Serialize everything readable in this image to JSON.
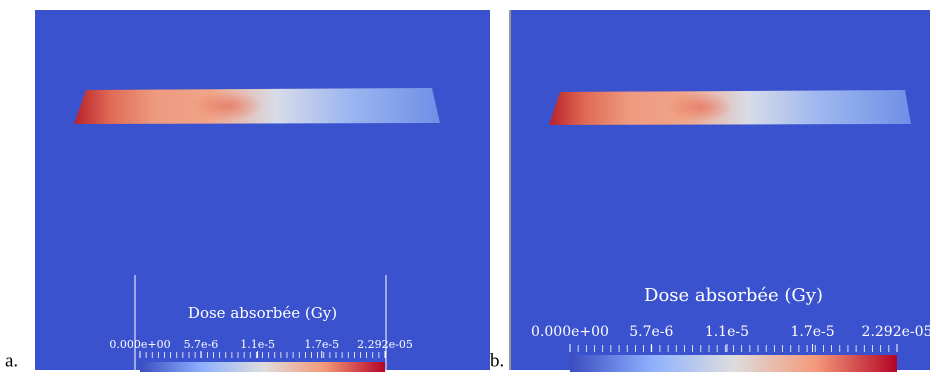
{
  "panels": [
    {
      "label": "a.",
      "colorbar": {
        "title": "Dose absorbée (Gy)",
        "range": [
          0,
          2.292e-05
        ],
        "ticks": [
          {
            "value": 0,
            "label": "0.000e+00"
          },
          {
            "value": 5.7e-06,
            "label": "5.7e-6"
          },
          {
            "value": 1.1e-05,
            "label": "1.1e-5"
          },
          {
            "value": 1.7e-05,
            "label": "1.7e-5"
          },
          {
            "value": 2.292e-05,
            "label": "2.292e-05"
          }
        ]
      }
    },
    {
      "label": "b.",
      "colorbar": {
        "title": "Dose absorbée (Gy)",
        "range": [
          0,
          2.292e-05
        ],
        "ticks": [
          {
            "value": 0,
            "label": "0.000e+00"
          },
          {
            "value": 5.7e-06,
            "label": "5.7e-6"
          },
          {
            "value": 1.1e-05,
            "label": "1.1e-5"
          },
          {
            "value": 1.7e-05,
            "label": "1.7e-5"
          },
          {
            "value": 2.292e-05,
            "label": "2.292e-05"
          }
        ]
      }
    }
  ]
}
